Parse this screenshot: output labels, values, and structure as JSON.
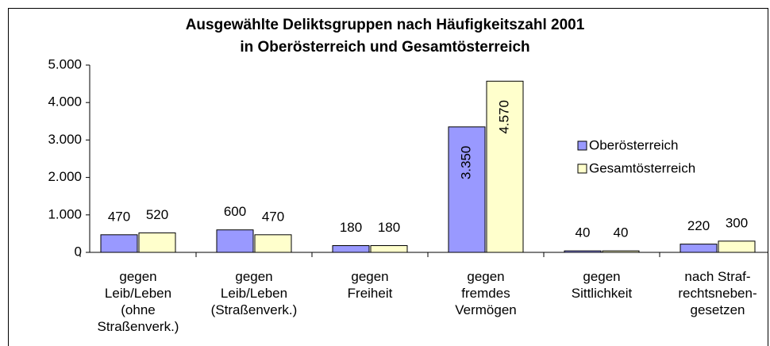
{
  "chart_data": {
    "type": "bar",
    "title": "Ausgewählte Deliktsgruppen nach Häufigkeitszahl 2001\nin Oberösterreich und Gesamtösterreich",
    "categories": [
      "gegen\nLeib/Leben\n(ohne\nStraßenverk.)",
      "gegen\nLeib/Leben\n(Straßenverk.)",
      "gegen\nFreiheit",
      "gegen\nfremdes\nVermögen",
      "gegen\nSittlichkeit",
      "nach Straf-\nrechtsneben-\ngesetzen"
    ],
    "series": [
      {
        "name": "Oberösterreich",
        "color": "#9999ff",
        "values": [
          470,
          600,
          180,
          3350,
          40,
          220
        ],
        "value_labels": [
          "470",
          "600",
          "180",
          "3.350",
          "40",
          "220"
        ]
      },
      {
        "name": "Gesamtösterreich",
        "color": "#ffffcc",
        "values": [
          520,
          470,
          180,
          4570,
          40,
          300
        ],
        "value_labels": [
          "520",
          "470",
          "180",
          "4.570",
          "40",
          "300"
        ]
      }
    ],
    "ylim": [
      0,
      5000
    ],
    "yticks": [
      0,
      {
        "value": 1000,
        "label": "1.000"
      },
      {
        "value": 2000,
        "label": "2.000"
      },
      {
        "value": 3000,
        "label": "3.000"
      },
      {
        "value": 4000,
        "label": "4.000"
      },
      {
        "value": 5000,
        "label": "5.000"
      }
    ],
    "grid": false,
    "legend": "right"
  }
}
